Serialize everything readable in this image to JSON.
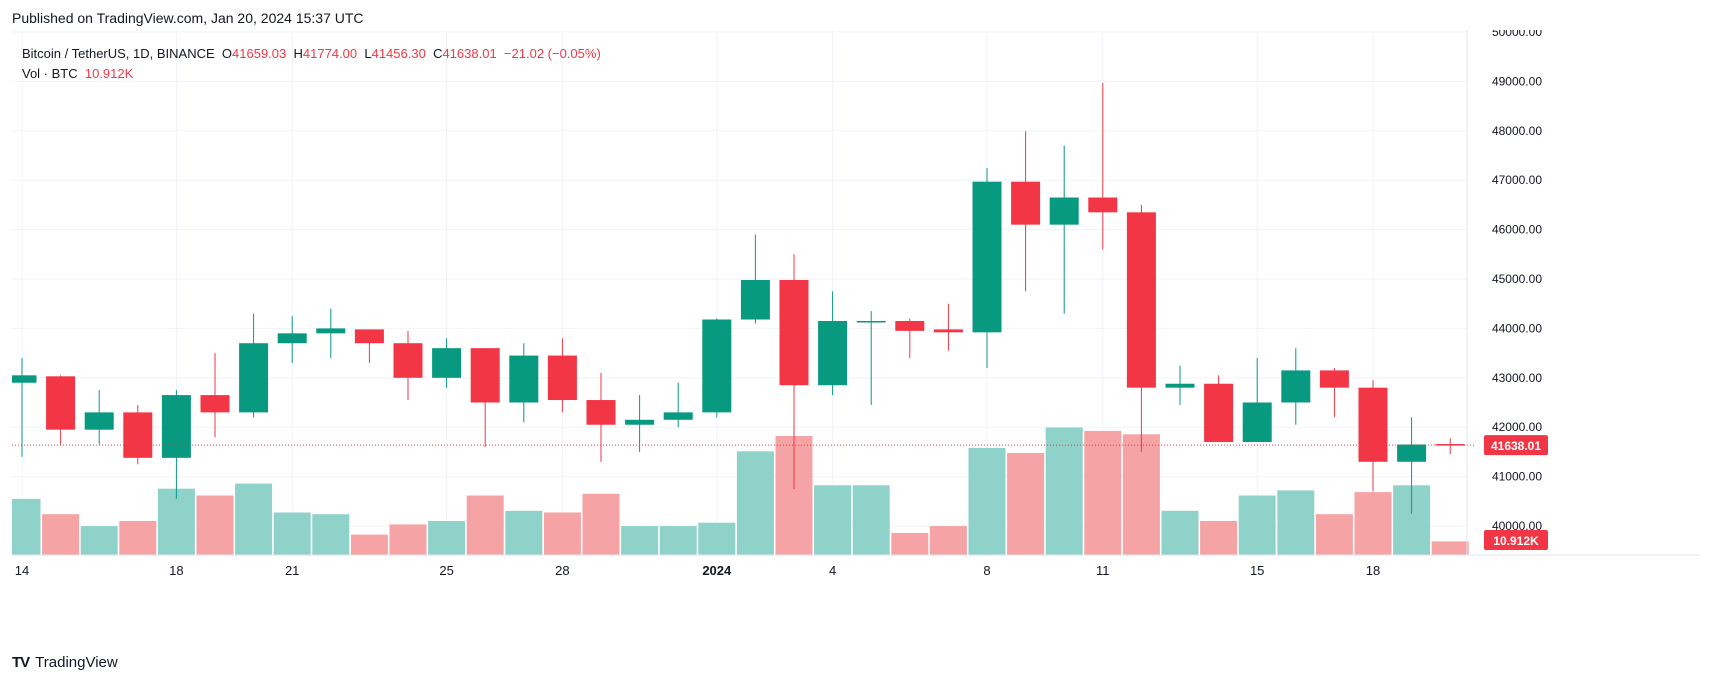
{
  "header": {
    "published": "Published on TradingView.com, Jan 20, 2024 15:37 UTC"
  },
  "legend": {
    "symbol": "Bitcoin / TetherUS, 1D, BINANCE",
    "o_label": "O",
    "o_value": "41659.03",
    "h_label": "H",
    "h_value": "41774.00",
    "l_label": "L",
    "l_value": "41456.30",
    "c_label": "C",
    "c_value": "41638.01",
    "change": "−21.02 (−0.05%)",
    "vol_label": "Vol · BTC",
    "vol_value": "10.912K"
  },
  "footer": {
    "brand": "TradingView",
    "logo_text": "TV"
  },
  "colors": {
    "up": "#089981",
    "down": "#f23645",
    "vol_up": "#8fd2c9",
    "vol_down": "#f5a3a5",
    "grid": "#f0f3fa"
  },
  "chart_data": {
    "type": "candlestick",
    "symbol": "Bitcoin / TetherUS, 1D, BINANCE",
    "ylim": [
      40000,
      50000
    ],
    "y_ticks": [
      "40000.00",
      "41000.00",
      "42000.00",
      "43000.00",
      "44000.00",
      "45000.00",
      "46000.00",
      "47000.00",
      "48000.00",
      "49000.00",
      "50000.00"
    ],
    "x_tick_labels": [
      {
        "index": 0,
        "label": "14"
      },
      {
        "index": 4,
        "label": "18"
      },
      {
        "index": 7,
        "label": "21"
      },
      {
        "index": 11,
        "label": "25"
      },
      {
        "index": 14,
        "label": "28"
      },
      {
        "index": 18,
        "label": "2024"
      },
      {
        "index": 21,
        "label": "4"
      },
      {
        "index": 25,
        "label": "8"
      },
      {
        "index": 28,
        "label": "11"
      },
      {
        "index": 32,
        "label": "15"
      },
      {
        "index": 35,
        "label": "18"
      }
    ],
    "last_price": "41638.01",
    "last_volume": "10.912K",
    "candles": [
      {
        "o": 42900,
        "h": 43400,
        "l": 41400,
        "c": 43050
      },
      {
        "o": 43030,
        "h": 43050,
        "l": 41650,
        "c": 41950
      },
      {
        "o": 41950,
        "h": 42750,
        "l": 41650,
        "c": 42300
      },
      {
        "o": 42300,
        "h": 42450,
        "l": 41250,
        "c": 41380
      },
      {
        "o": 41380,
        "h": 42750,
        "l": 40550,
        "c": 42650
      },
      {
        "o": 42650,
        "h": 43500,
        "l": 41800,
        "c": 42300
      },
      {
        "o": 42300,
        "h": 44300,
        "l": 42200,
        "c": 43700
      },
      {
        "o": 43700,
        "h": 44250,
        "l": 43300,
        "c": 43900
      },
      {
        "o": 43900,
        "h": 44400,
        "l": 43400,
        "c": 44000
      },
      {
        "o": 43980,
        "h": 43980,
        "l": 43300,
        "c": 43700
      },
      {
        "o": 43700,
        "h": 43950,
        "l": 42550,
        "c": 43000
      },
      {
        "o": 43000,
        "h": 43800,
        "l": 42800,
        "c": 43600
      },
      {
        "o": 43600,
        "h": 43600,
        "l": 41600,
        "c": 42500
      },
      {
        "o": 42500,
        "h": 43700,
        "l": 42100,
        "c": 43450
      },
      {
        "o": 43450,
        "h": 43800,
        "l": 42300,
        "c": 42550
      },
      {
        "o": 42550,
        "h": 43100,
        "l": 41300,
        "c": 42050
      },
      {
        "o": 42050,
        "h": 42650,
        "l": 41500,
        "c": 42150
      },
      {
        "o": 42150,
        "h": 42900,
        "l": 42000,
        "c": 42300
      },
      {
        "o": 42300,
        "h": 44200,
        "l": 42200,
        "c": 44180
      },
      {
        "o": 44180,
        "h": 45900,
        "l": 44100,
        "c": 44980
      },
      {
        "o": 44980,
        "h": 45500,
        "l": 40750,
        "c": 42850
      },
      {
        "o": 42850,
        "h": 44750,
        "l": 42650,
        "c": 44150
      },
      {
        "o": 44150,
        "h": 44350,
        "l": 42450,
        "c": 44150
      },
      {
        "o": 44150,
        "h": 44200,
        "l": 43400,
        "c": 43950
      },
      {
        "o": 43980,
        "h": 44500,
        "l": 43550,
        "c": 43920
      },
      {
        "o": 43920,
        "h": 47250,
        "l": 43200,
        "c": 46970
      },
      {
        "o": 46970,
        "h": 47990,
        "l": 44750,
        "c": 46100
      },
      {
        "o": 46100,
        "h": 47700,
        "l": 44300,
        "c": 46650
      },
      {
        "o": 46650,
        "h": 48970,
        "l": 45600,
        "c": 46350
      },
      {
        "o": 46350,
        "h": 46500,
        "l": 41500,
        "c": 42800
      },
      {
        "o": 42800,
        "h": 43250,
        "l": 42450,
        "c": 42880
      },
      {
        "o": 42880,
        "h": 43050,
        "l": 41700,
        "c": 41700
      },
      {
        "o": 41700,
        "h": 43400,
        "l": 41700,
        "c": 42500
      },
      {
        "o": 42500,
        "h": 43600,
        "l": 42050,
        "c": 43150
      },
      {
        "o": 43150,
        "h": 43200,
        "l": 42200,
        "c": 42800
      },
      {
        "o": 42800,
        "h": 42950,
        "l": 40700,
        "c": 41300
      },
      {
        "o": 41300,
        "h": 42200,
        "l": 40250,
        "c": 41650
      },
      {
        "o": 41659.03,
        "h": 41774,
        "l": 41456.3,
        "c": 41638.01
      }
    ],
    "volume_ylim": [
      0,
      100
    ],
    "volumes": [
      33,
      24,
      17,
      20,
      39,
      35,
      42,
      25,
      24,
      12,
      18,
      20,
      35,
      26,
      25,
      36,
      17,
      17,
      19,
      61,
      70,
      41,
      41,
      13,
      17,
      63,
      60,
      75,
      73,
      71,
      26,
      20,
      35,
      38,
      24,
      37,
      41,
      8
    ]
  }
}
